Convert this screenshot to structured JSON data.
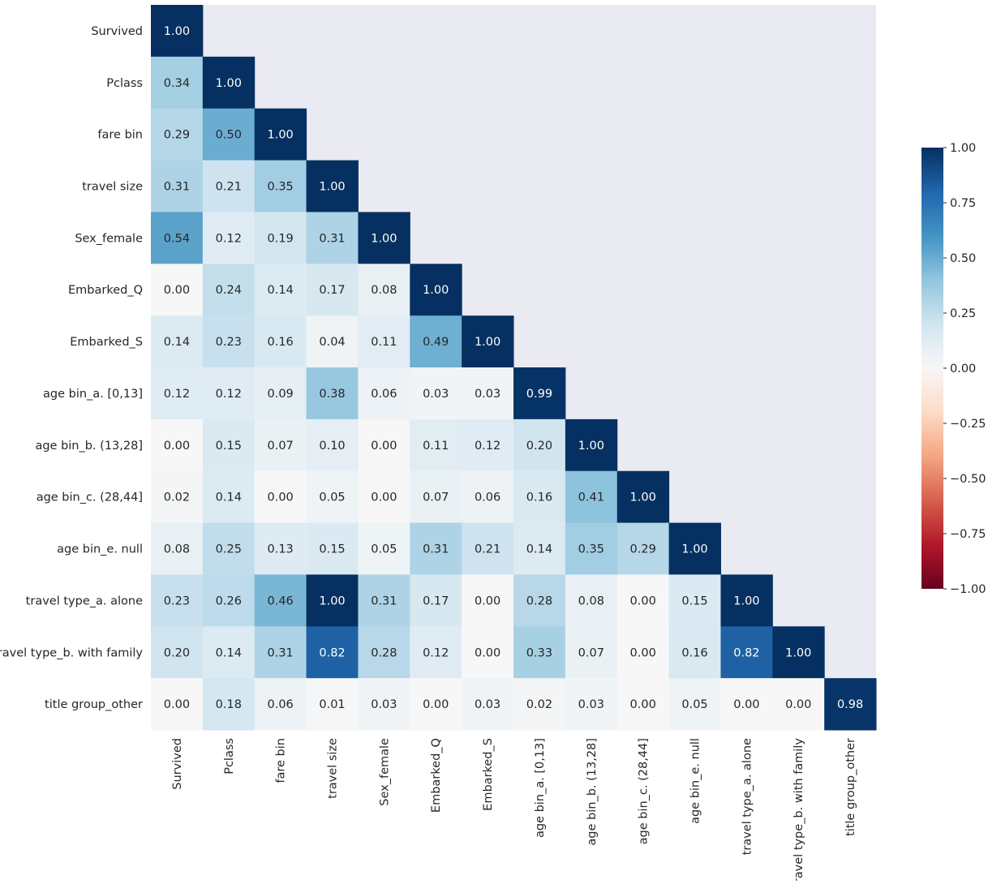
{
  "chart_data": {
    "type": "heatmap",
    "mask": "lower-triangle",
    "labels": [
      "Survived",
      "Pclass",
      "fare bin",
      "travel size",
      "Sex_female",
      "Embarked_Q",
      "Embarked_S",
      "age bin_a. [0,13]",
      "age bin_b. (13,28]",
      "age bin_c. (28,44]",
      "age bin_e. null",
      "travel type_a. alone",
      "travel type_b. with family",
      "title group_other"
    ],
    "values": [
      [
        1.0
      ],
      [
        0.34,
        1.0
      ],
      [
        0.29,
        0.5,
        1.0
      ],
      [
        0.31,
        0.21,
        0.35,
        1.0
      ],
      [
        0.54,
        0.12,
        0.19,
        0.31,
        1.0
      ],
      [
        0.0,
        0.24,
        0.14,
        0.17,
        0.08,
        1.0
      ],
      [
        0.14,
        0.23,
        0.16,
        0.04,
        0.11,
        0.49,
        1.0
      ],
      [
        0.12,
        0.12,
        0.09,
        0.38,
        0.06,
        0.03,
        0.03,
        0.99
      ],
      [
        0.0,
        0.15,
        0.07,
        0.1,
        0.0,
        0.11,
        0.12,
        0.2,
        1.0
      ],
      [
        0.02,
        0.14,
        0.0,
        0.05,
        0.0,
        0.07,
        0.06,
        0.16,
        0.41,
        1.0
      ],
      [
        0.08,
        0.25,
        0.13,
        0.15,
        0.05,
        0.31,
        0.21,
        0.14,
        0.35,
        0.29,
        1.0
      ],
      [
        0.23,
        0.26,
        0.46,
        1.0,
        0.31,
        0.17,
        0.0,
        0.28,
        0.08,
        0.0,
        0.15,
        1.0
      ],
      [
        0.2,
        0.14,
        0.31,
        0.82,
        0.28,
        0.12,
        0.0,
        0.33,
        0.07,
        0.0,
        0.16,
        0.82,
        1.0
      ],
      [
        0.0,
        0.18,
        0.06,
        0.01,
        0.03,
        0.0,
        0.03,
        0.02,
        0.03,
        0.0,
        0.05,
        0.0,
        0.0,
        0.98
      ]
    ],
    "value_format": "0.00",
    "colormap": "RdBu",
    "vmin": -1.0,
    "vmax": 1.0,
    "colorbar_ticks": [
      "1.00",
      "0.75",
      "0.50",
      "0.25",
      "0.00",
      "−0.25",
      "−0.50",
      "−0.75",
      "−1.00"
    ],
    "colorbar_tick_values": [
      1.0,
      0.75,
      0.5,
      0.25,
      0.0,
      -0.25,
      -0.5,
      -0.75,
      -1.0
    ],
    "grid": false,
    "colorbar_placement": "right"
  },
  "colors": {
    "plot_background": "#eaeaf2",
    "page_background": "#ffffff",
    "text": "#262626",
    "colorbar_stops": [
      "#053061",
      "#2166ac",
      "#4393c3",
      "#92c5de",
      "#d1e5f0",
      "#f7f7f7",
      "#fddbc7",
      "#f4a582",
      "#d6604d",
      "#b2182b",
      "#67001f"
    ]
  }
}
